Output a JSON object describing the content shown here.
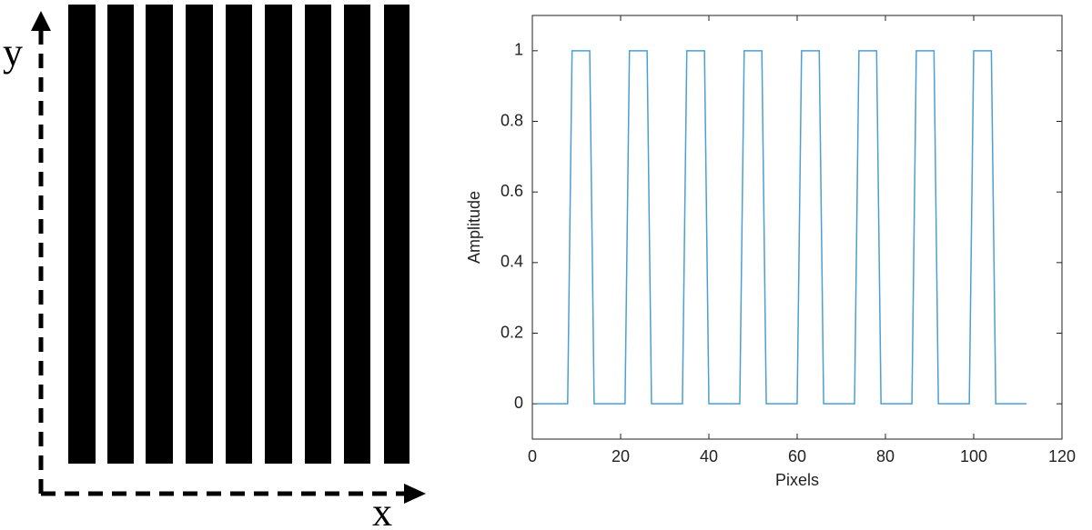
{
  "diagram": {
    "y_label": "y",
    "x_label": "x"
  },
  "chart_data": {
    "type": "line",
    "xlabel": "Pixels",
    "ylabel": "Amplitude",
    "x": [
      1,
      8,
      9,
      13,
      14,
      21,
      22,
      26,
      27,
      34,
      35,
      39,
      40,
      47,
      48,
      52,
      53,
      60,
      61,
      65,
      66,
      73,
      74,
      78,
      79,
      86,
      87,
      91,
      92,
      99,
      100,
      104,
      105,
      112
    ],
    "series": [
      {
        "color": "#4a9fd6",
        "values": [
          0,
          0,
          1,
          1,
          0,
          0,
          1,
          1,
          0,
          0,
          1,
          1,
          0,
          0,
          1,
          1,
          0,
          0,
          1,
          1,
          0,
          0,
          1,
          1,
          0,
          0,
          1,
          1,
          0,
          0,
          1,
          1,
          0,
          0
        ]
      }
    ],
    "xlim": [
      0,
      120
    ],
    "xticks": [
      0,
      20,
      40,
      60,
      80,
      100,
      120
    ],
    "ylim": [
      -0.1,
      1.1
    ],
    "yticks": [
      0,
      0.2,
      0.4,
      0.6,
      0.8,
      1
    ]
  }
}
